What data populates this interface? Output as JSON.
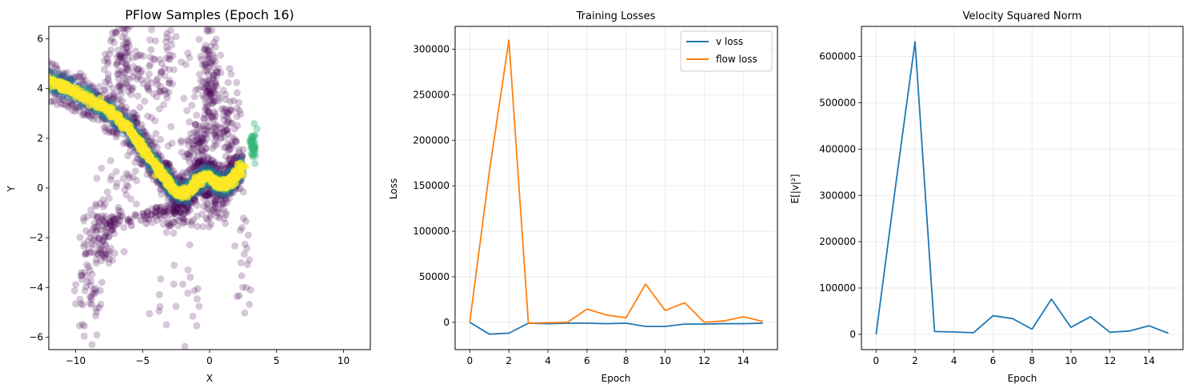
{
  "chart_data": [
    {
      "type": "scatter",
      "title": "PFlow Samples (Epoch 16)",
      "xlabel": "X",
      "ylabel": "Y",
      "xlim": [
        -12,
        12
      ],
      "ylim": [
        -6.5,
        6.5
      ],
      "xticks": [
        -10,
        -5,
        0,
        5,
        10
      ],
      "yticks": [
        -6,
        -4,
        -2,
        0,
        2,
        4,
        6
      ],
      "grid": false,
      "colormap": [
        "#440154",
        "#31688e",
        "#35b779",
        "#fde725"
      ],
      "trajectory_points": [
        [
          -12.0,
          4.3
        ],
        [
          -10.5,
          4.0
        ],
        [
          -9.0,
          3.6
        ],
        [
          -7.5,
          3.1
        ],
        [
          -6.0,
          2.4
        ],
        [
          -5.0,
          1.6
        ],
        [
          -4.0,
          0.9
        ],
        [
          -3.2,
          0.3
        ],
        [
          -2.5,
          -0.2
        ],
        [
          -1.8,
          -0.2
        ],
        [
          -1.0,
          0.2
        ],
        [
          -0.2,
          0.5
        ],
        [
          0.5,
          0.2
        ],
        [
          1.2,
          0.1
        ],
        [
          1.8,
          0.4
        ],
        [
          2.5,
          0.9
        ]
      ]
    },
    {
      "type": "line",
      "title": "Training Losses",
      "xlabel": "Epoch",
      "ylabel": "Loss",
      "xlim": [
        -0.75,
        15.75
      ],
      "ylim": [
        -30000,
        325000
      ],
      "xticks": [
        0,
        2,
        4,
        6,
        8,
        10,
        12,
        14
      ],
      "yticks": [
        0,
        50000,
        100000,
        150000,
        200000,
        250000,
        300000
      ],
      "grid": true,
      "legend_position": "top-right",
      "x": [
        0,
        1,
        2,
        3,
        4,
        5,
        6,
        7,
        8,
        9,
        10,
        11,
        12,
        13,
        14,
        15
      ],
      "series": [
        {
          "name": "v loss",
          "color": "#1f77b4",
          "values": [
            0,
            -13000,
            -12000,
            -1000,
            -1500,
            -1000,
            -1000,
            -1500,
            -1000,
            -4500,
            -4500,
            -2000,
            -2000,
            -1500,
            -1500,
            -1000
          ]
        },
        {
          "name": "flow loss",
          "color": "#ff7f0e",
          "values": [
            0,
            165000,
            310000,
            -1000,
            -500,
            0,
            14500,
            8000,
            5000,
            42000,
            13000,
            21500,
            0,
            1500,
            6000,
            1000
          ]
        }
      ]
    },
    {
      "type": "line",
      "title": "Velocity Squared Norm",
      "xlabel": "Epoch",
      "ylabel": "E[|v|²]",
      "xlim": [
        -0.75,
        15.75
      ],
      "ylim": [
        -33000,
        665000
      ],
      "xticks": [
        0,
        2,
        4,
        6,
        8,
        10,
        12,
        14
      ],
      "yticks": [
        0,
        100000,
        200000,
        300000,
        400000,
        500000,
        600000
      ],
      "grid": true,
      "x": [
        0,
        1,
        2,
        3,
        4,
        5,
        6,
        7,
        8,
        9,
        10,
        11,
        12,
        13,
        14,
        15
      ],
      "series": [
        {
          "color": "#1f77b4",
          "values": [
            0,
            320000,
            632000,
            6000,
            5000,
            3500,
            40000,
            34000,
            11000,
            76000,
            15000,
            38000,
            4500,
            7000,
            18500,
            2500
          ]
        }
      ]
    }
  ]
}
